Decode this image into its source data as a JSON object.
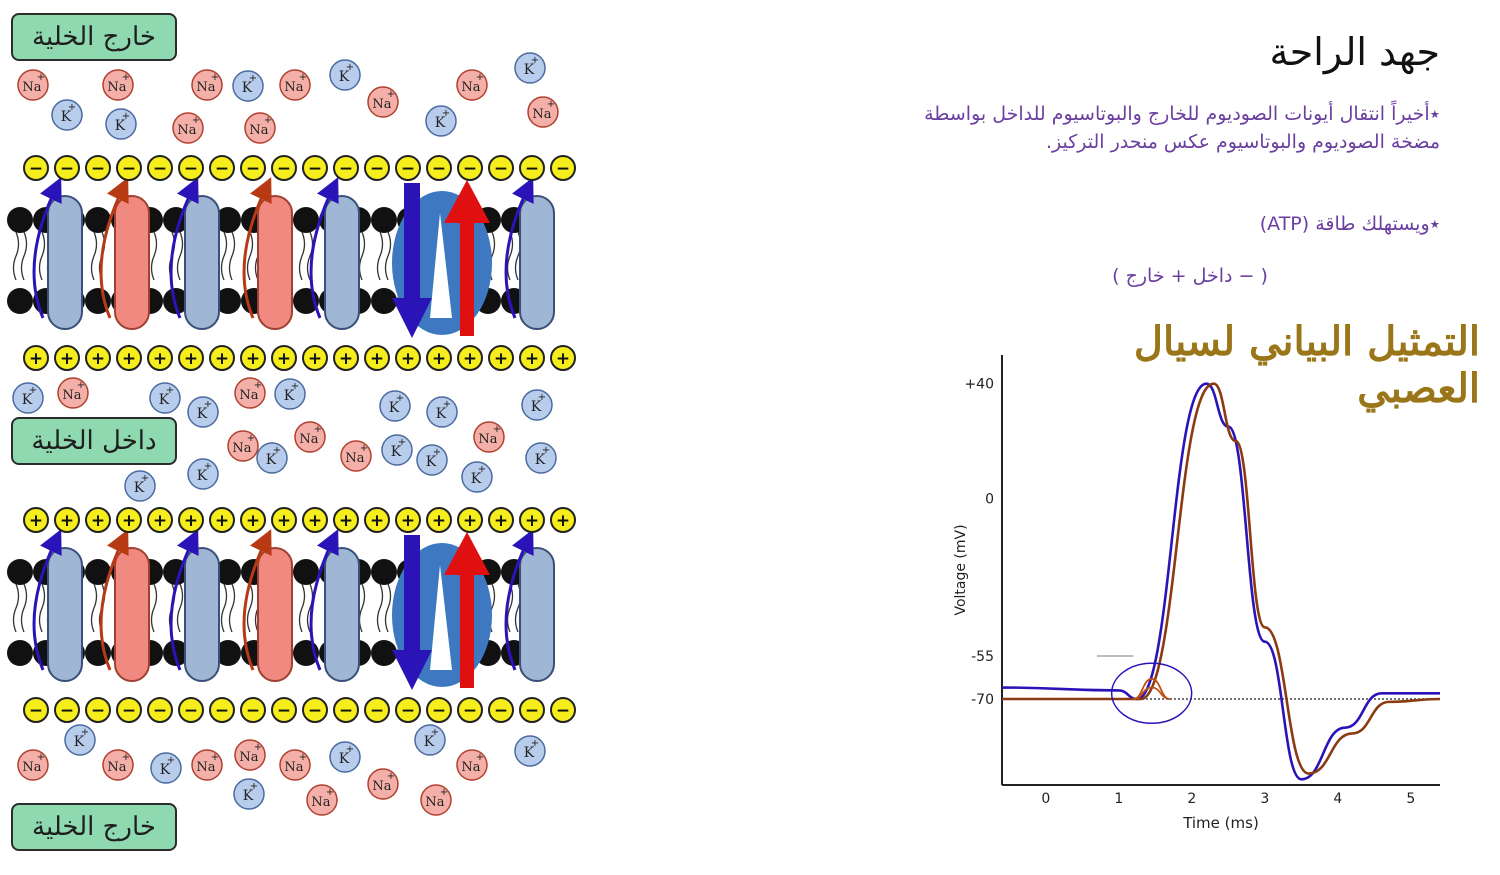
{
  "labels": {
    "outside_top": "خارج الخلية",
    "inside": "داخل الخلية",
    "outside_bottom": "خارج الخلية"
  },
  "ions": {
    "sodium": "Na",
    "potassium": "K",
    "plus": "+",
    "neg_charge": "−",
    "pos_charge": "+"
  },
  "slide": {
    "title": "جهد الراحة",
    "bullet1": "٭أخيراً انتقال أيونات الصوديوم للخارج والبوتاسيوم للداخل بواسطة مضخة الصوديوم والبوتاسيوم عكس منحدر التركيز.",
    "bullet2": "٭ويستهلك طاقة (ATP)",
    "bullet3": "( − داخل + خارج )"
  },
  "graph_title": "التمثيل البياني لسيال العصبي",
  "chart_data": {
    "type": "line",
    "xlabel": "Time (ms)",
    "ylabel": "Voltage (mV)",
    "x_ticks": [
      "0",
      "1",
      "2",
      "3",
      "4",
      "5"
    ],
    "y_ticks": [
      "+40",
      "0",
      "-55",
      "-70"
    ],
    "xlim": [
      -0.6,
      5.4
    ],
    "ylim": [
      -100,
      50
    ],
    "series": [
      {
        "x": [
          -0.6,
          1.0,
          1.25,
          2.2,
          2.5,
          3.0,
          3.5,
          4.1,
          4.6,
          5.4
        ],
        "y": [
          -66,
          -67,
          -70,
          40,
          25,
          -50,
          -98,
          -80,
          -68,
          -68
        ],
        "color": "#2a14b8"
      },
      {
        "x": [
          -0.6,
          1.0,
          1.3,
          2.3,
          2.6,
          3.0,
          3.6,
          4.2,
          4.7,
          5.4
        ],
        "y": [
          -70,
          -70,
          -70,
          40,
          20,
          -45,
          -96,
          -82,
          -71,
          -70
        ],
        "color": "#8b3a12"
      },
      {
        "x": [
          1.2,
          1.45,
          1.7
        ],
        "y": [
          -70,
          -63,
          -70
        ],
        "color": "#c05018"
      },
      {
        "x": [
          1.2,
          1.45,
          1.7
        ],
        "y": [
          -70,
          -66,
          -70
        ],
        "color": "#c05018"
      }
    ],
    "threshold_line": {
      "y": -55,
      "x": [
        0.7,
        1.2
      ],
      "color": "#bbbbbb"
    },
    "rest_line": {
      "y": -70,
      "color": "#444444"
    }
  }
}
